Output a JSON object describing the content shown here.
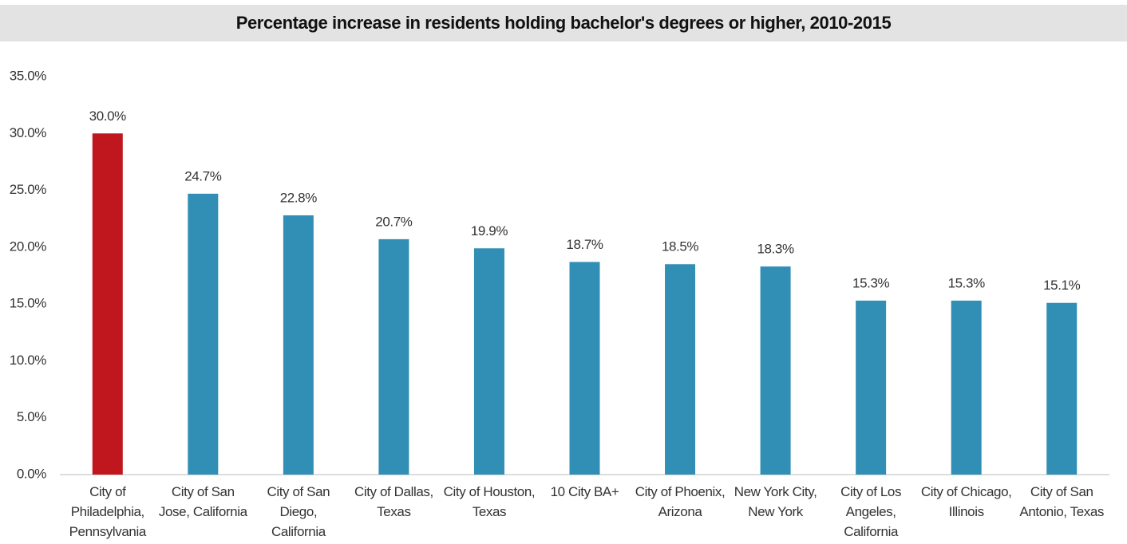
{
  "chart_data": {
    "type": "bar",
    "title": "Percentage increase in residents holding bachelor's degrees or higher, 2010-2015",
    "categories": [
      "City of Philadelphia, Pennsylvania",
      "City of San Jose, California",
      "City of San Diego, California",
      "City of Dallas, Texas",
      "City of Houston, Texas",
      "10 City BA+",
      "City of Phoenix, Arizona",
      "New York City, New York",
      "City of Los Angeles, California",
      "City of Chicago, Illinois",
      "City of San Antonio, Texas"
    ],
    "values": [
      30.0,
      24.7,
      22.8,
      20.7,
      19.9,
      18.7,
      18.5,
      18.3,
      15.3,
      15.3,
      15.1
    ],
    "value_labels": [
      "30.0%",
      "24.7%",
      "22.8%",
      "20.7%",
      "19.9%",
      "18.7%",
      "18.5%",
      "18.3%",
      "15.3%",
      "15.3%",
      "15.1%"
    ],
    "colors": [
      "#c0161e",
      "#318fb5",
      "#318fb5",
      "#318fb5",
      "#318fb5",
      "#318fb5",
      "#318fb5",
      "#318fb5",
      "#318fb5",
      "#318fb5",
      "#318fb5"
    ],
    "ylim": [
      0,
      35
    ],
    "yticks": [
      {
        "value": 0,
        "label": "0.0%"
      },
      {
        "value": 5,
        "label": "5.0%"
      },
      {
        "value": 10,
        "label": "10.0%"
      },
      {
        "value": 15,
        "label": "15.0%"
      },
      {
        "value": 20,
        "label": "20.0%"
      },
      {
        "value": 25,
        "label": "25.0%"
      },
      {
        "value": 30,
        "label": "30.0%"
      },
      {
        "value": 35,
        "label": "35.0%"
      }
    ],
    "grid": false
  }
}
